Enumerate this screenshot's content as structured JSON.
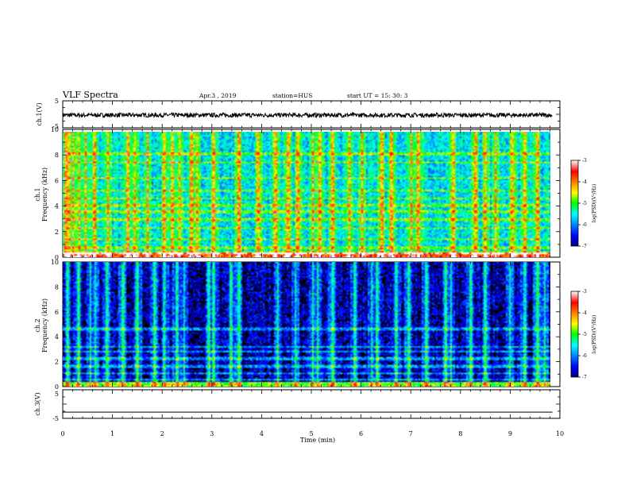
{
  "header": {
    "title": "VLF Spectra",
    "date": "Apr.3 , 2019",
    "station": "station=HUS",
    "start": "start UT = 15: 30: 3"
  },
  "chart_data": [
    {
      "type": "line",
      "panel": "ch1-waveform",
      "ylabel": "ch.1(V)",
      "yticks": [
        "5",
        "-5"
      ],
      "ylim": [
        -5,
        5
      ],
      "xlim": [
        0,
        10
      ],
      "description_level": -0.3
    },
    {
      "type": "heatmap",
      "panel": "ch1-spectrogram",
      "ylabel": "Frequency (kHz)",
      "ylabel_prefix": "ch.1",
      "yticks": [
        "0",
        "2",
        "4",
        "6",
        "8",
        "10"
      ],
      "ylim": [
        0,
        10
      ],
      "xlim": [
        0,
        9.85
      ],
      "colorbar": {
        "label": "log(PSD)(V²/Hz)",
        "ticks": [
          "-3",
          "-4",
          "-5",
          "-6",
          "-7"
        ],
        "range": [
          -7,
          -3
        ]
      },
      "background_level": -5.8,
      "horizontal_bands_khz": [
        0.3,
        0.7,
        1.4,
        2.3,
        3.0,
        3.6,
        4.1,
        4.7,
        5.3,
        6.3,
        7.6,
        8.3
      ],
      "impulsive_bursts_min": [
        0.05,
        0.12,
        0.2,
        0.32,
        0.45,
        0.62,
        0.9,
        1.3,
        1.45,
        1.7,
        2.05,
        2.2,
        2.35,
        2.6,
        2.7,
        3.05,
        3.55,
        3.95,
        4.3,
        4.55,
        4.75,
        5.05,
        5.2,
        5.45,
        5.8,
        6.05,
        6.45,
        6.65,
        7.05,
        7.2,
        7.9,
        8.35,
        8.55,
        8.75,
        9.1,
        9.35,
        9.6
      ]
    },
    {
      "type": "heatmap",
      "panel": "ch2-spectrogram",
      "ylabel": "Frequency (kHz)",
      "ylabel_prefix": "ch.2",
      "yticks": [
        "0",
        "2",
        "4",
        "6",
        "8",
        "10"
      ],
      "ylim": [
        0,
        10
      ],
      "xlim": [
        0,
        9.85
      ],
      "colorbar": {
        "label": "log(PSD)(V²/Hz)",
        "ticks": [
          "-3",
          "-4",
          "-5",
          "-6",
          "-7"
        ],
        "range": [
          -7,
          -3
        ]
      },
      "background_level": -6.9,
      "horizontal_bands_khz": [
        0.5,
        1.0,
        1.6,
        2.2,
        2.8,
        3.2,
        4.6
      ],
      "impulsive_bursts_min": [
        0.08,
        0.3,
        0.55,
        0.65,
        0.88,
        1.2,
        1.5,
        1.85,
        2.05,
        2.3,
        2.45,
        2.95,
        3.05,
        3.4,
        3.55,
        4.35,
        4.7,
        5.05,
        5.15,
        5.45,
        5.9,
        6.25,
        6.35,
        6.75,
        7.0,
        7.35,
        7.75,
        7.85,
        8.25,
        8.55,
        9.05,
        9.35,
        9.6,
        9.75
      ]
    },
    {
      "type": "line",
      "panel": "ch3-waveform",
      "ylabel": "ch.3(V)",
      "yticks": [
        "5",
        "-5"
      ],
      "ylim": [
        -5,
        5
      ],
      "xlim": [
        0,
        10
      ],
      "description_level": -2.8
    }
  ],
  "xaxis": {
    "label": "Time (min)",
    "ticks": [
      "0",
      "1",
      "2",
      "3",
      "4",
      "5",
      "6",
      "7",
      "8",
      "9",
      "10"
    ]
  }
}
